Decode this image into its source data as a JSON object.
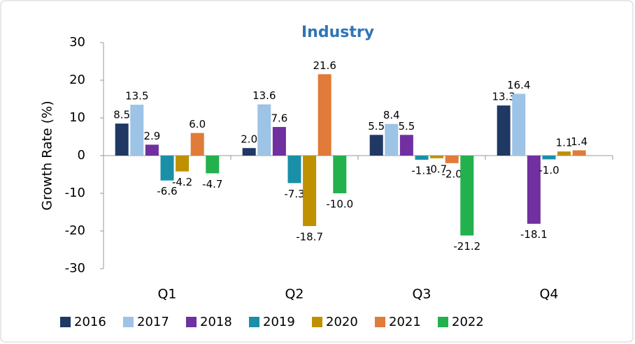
{
  "chart_data": {
    "type": "bar",
    "title": "Industry",
    "y_label": "Growth Rate (%)",
    "categories": [
      "Q1",
      "Q2",
      "Q3",
      "Q4"
    ],
    "series": [
      {
        "name": "2016",
        "color": "#1f3864",
        "values": [
          8.5,
          2.0,
          5.5,
          13.3
        ],
        "value_labels": [
          "8.5",
          "2.0",
          "5.5",
          "13.3"
        ]
      },
      {
        "name": "2017",
        "color": "#9dc3e6",
        "values": [
          13.5,
          13.6,
          8.4,
          16.4
        ],
        "value_labels": [
          "13.5",
          "13.6",
          "8.4",
          "16.4"
        ]
      },
      {
        "name": "2018",
        "color": "#7030a0",
        "values": [
          2.9,
          7.6,
          5.5,
          -18.1
        ],
        "value_labels": [
          "2.9",
          "7.6",
          "5.5",
          "-18.1"
        ]
      },
      {
        "name": "2019",
        "color": "#1a8fa8",
        "values": [
          -6.6,
          -7.3,
          -1.1,
          -1.0
        ],
        "value_labels": [
          "-6.6",
          "-7.3",
          "-1.1",
          "-1.0"
        ]
      },
      {
        "name": "2020",
        "color": "#bf9000",
        "values": [
          -4.2,
          -18.7,
          -0.7,
          1.1
        ],
        "value_labels": [
          "-4.2",
          "-18.7",
          "-0.7",
          "1.1"
        ]
      },
      {
        "name": "2021",
        "color": "#e07b39",
        "values": [
          6.0,
          21.6,
          -2.0,
          1.4
        ],
        "value_labels": [
          "6.0",
          "21.6",
          "-2.0",
          "1.4"
        ]
      },
      {
        "name": "2022",
        "color": "#22b14c",
        "values": [
          -4.7,
          -10.0,
          -21.2,
          null
        ],
        "value_labels": [
          "-4.7",
          "-10.0",
          "-21.2",
          null
        ]
      }
    ],
    "ylim": [
      -30,
      30
    ],
    "yticks": [
      -30,
      -20,
      -10,
      0,
      10,
      20,
      30
    ],
    "grid": false
  }
}
